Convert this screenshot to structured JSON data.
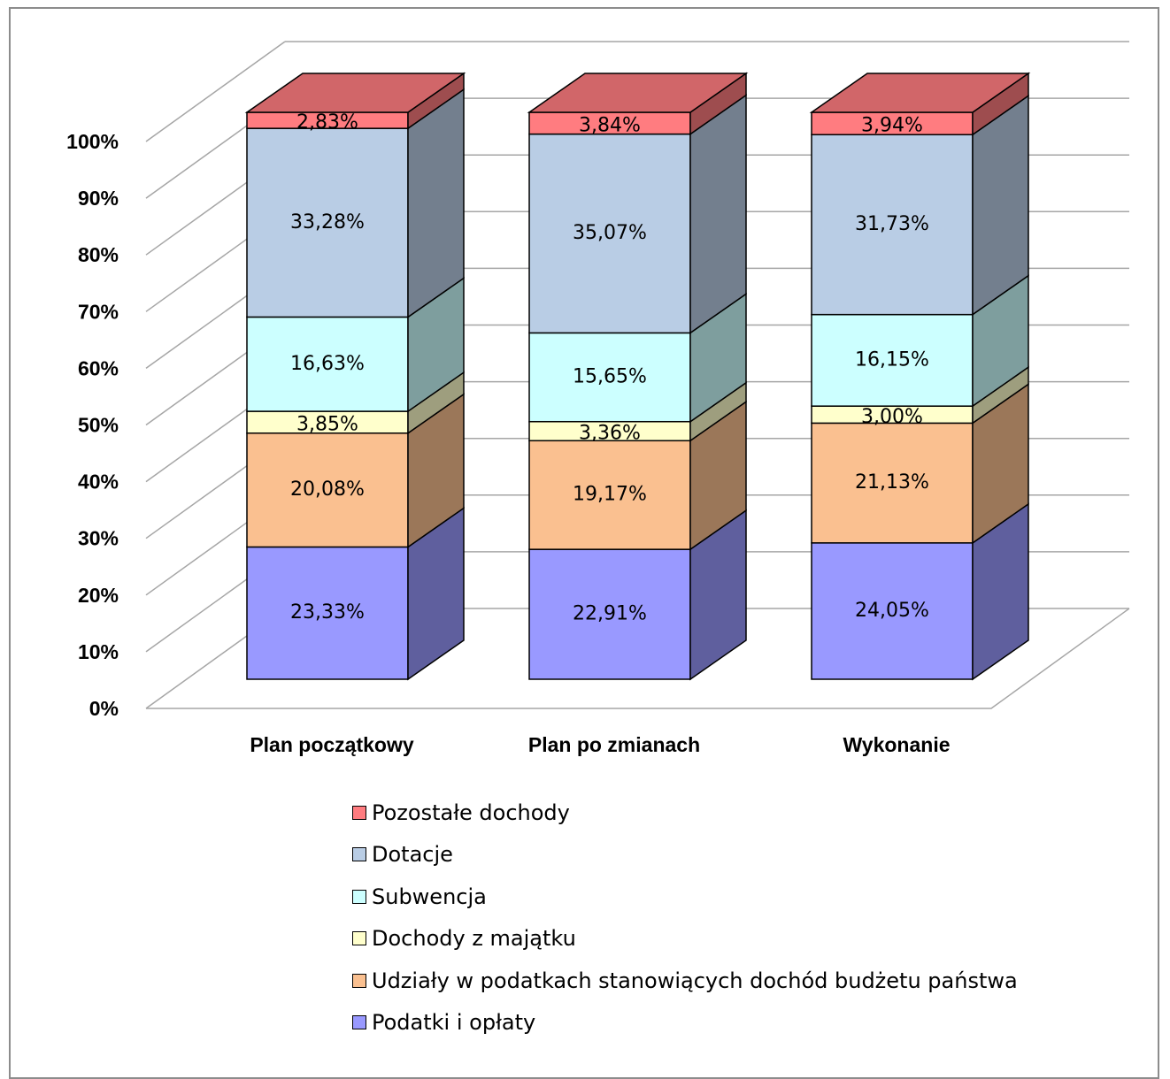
{
  "chart_data": {
    "type": "bar",
    "stacked": true,
    "three_d": true,
    "categories": [
      "Plan początkowy",
      "Plan po zmianach",
      "Wykonanie"
    ],
    "series": [
      {
        "name": "Podatki i opłaty",
        "values": [
          23.33,
          22.91,
          24.05
        ],
        "labels": [
          "23,33%",
          "22,91%",
          "24,05%"
        ],
        "color": "#9999ff"
      },
      {
        "name": "Udziały w podatkach stanowiących dochód budżetu państwa",
        "values": [
          20.08,
          19.17,
          21.13
        ],
        "labels": [
          "20,08%",
          "19,17%",
          "21,13%"
        ],
        "color": "#fac090"
      },
      {
        "name": "Dochody z majątku",
        "values": [
          3.85,
          3.36,
          3.0
        ],
        "labels": [
          "3,85%",
          "3,36%",
          "3,00%"
        ],
        "color": "#ffffcc"
      },
      {
        "name": "Subwencja",
        "values": [
          16.63,
          15.65,
          16.15
        ],
        "labels": [
          "16,63%",
          "15,65%",
          "16,15%"
        ],
        "color": "#ccffff"
      },
      {
        "name": "Dotacje",
        "values": [
          33.28,
          35.07,
          31.73
        ],
        "labels": [
          "33,28%",
          "35,07%",
          "31,73%"
        ],
        "color": "#b9cde5"
      },
      {
        "name": "Pozostałe dochody",
        "values": [
          2.83,
          3.84,
          3.94
        ],
        "labels": [
          "2,83%",
          "3,84%",
          "3,94%"
        ],
        "color": "#ff7c80"
      }
    ],
    "y_ticks": [
      "0%",
      "10%",
      "20%",
      "30%",
      "40%",
      "50%",
      "60%",
      "70%",
      "80%",
      "90%",
      "100%"
    ],
    "ylim": [
      0,
      100
    ],
    "gridlines": true,
    "legend_position": "bottom"
  },
  "legend": [
    {
      "label": "Pozostałe dochody",
      "color": "#ff7c80"
    },
    {
      "label": "Dotacje",
      "color": "#b9cde5"
    },
    {
      "label": "Subwencja",
      "color": "#ccffff"
    },
    {
      "label": "Dochody z majątku",
      "color": "#ffffcc"
    },
    {
      "label": "Udziały w podatkach stanowiących dochód budżetu państwa",
      "color": "#fac090"
    },
    {
      "label": "Podatki i opłaty",
      "color": "#9999ff"
    }
  ]
}
